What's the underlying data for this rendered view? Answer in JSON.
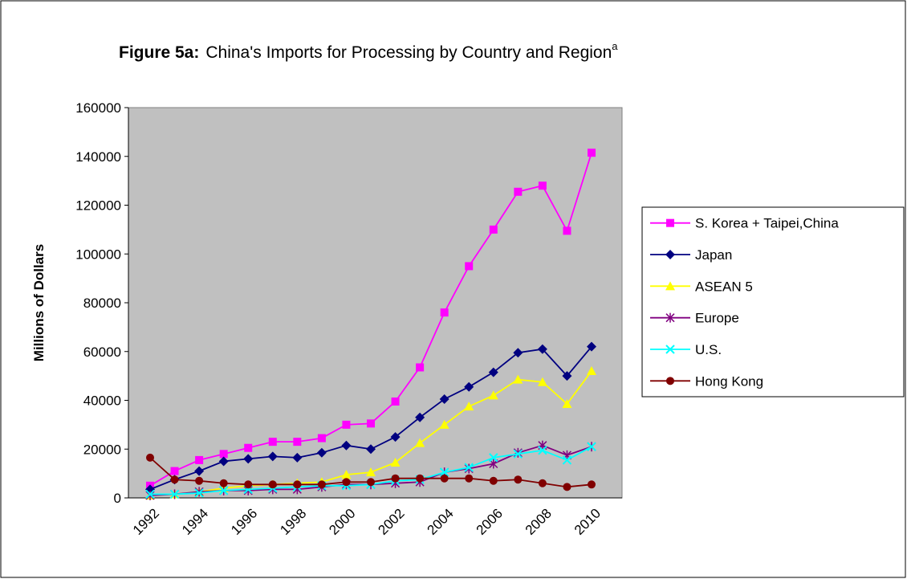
{
  "chart_data": {
    "type": "line",
    "figure_label": "Figure 5a:",
    "title": "China's Imports for Processing by Country and Region",
    "title_superscript": "a",
    "ylabel": "Millions of Dollars",
    "categories": [
      "1992",
      null,
      "1994",
      null,
      "1996",
      null,
      "1998",
      null,
      "2000",
      null,
      "2002",
      null,
      "2004",
      null,
      "2006",
      null,
      "2008",
      null,
      "2010"
    ],
    "ylim": [
      0,
      160000
    ],
    "yticks": [
      0,
      20000,
      40000,
      60000,
      80000,
      100000,
      120000,
      140000,
      160000
    ],
    "legend": "right",
    "series": [
      {
        "name": "S. Korea + Taipei,China",
        "color": "#ff00ff",
        "marker": "square",
        "values": [
          5000,
          11000,
          15500,
          18000,
          20500,
          23000,
          23000,
          24500,
          30000,
          30500,
          39500,
          53500,
          76000,
          95000,
          110000,
          125500,
          128000,
          109500,
          141500
        ]
      },
      {
        "name": "Japan",
        "color": "#000080",
        "marker": "diamond",
        "values": [
          3500,
          7500,
          11000,
          15000,
          16000,
          17000,
          16500,
          18500,
          21500,
          20000,
          25000,
          33000,
          40500,
          45500,
          51500,
          59500,
          61000,
          50000,
          62000
        ]
      },
      {
        "name": "ASEAN 5",
        "color": "#ffff00",
        "marker": "triangle",
        "values": [
          1000,
          1500,
          2500,
          4000,
          5000,
          5500,
          6000,
          6500,
          9500,
          10500,
          14500,
          22500,
          30000,
          37500,
          42000,
          48500,
          47500,
          38500,
          52000
        ]
      },
      {
        "name": "Europe",
        "color": "#800080",
        "marker": "asterisk",
        "values": [
          1000,
          1500,
          2500,
          3000,
          3000,
          3500,
          3500,
          4500,
          5500,
          5500,
          6000,
          6500,
          10500,
          12000,
          14000,
          18500,
          21500,
          17500,
          21000
        ]
      },
      {
        "name": "U.S.",
        "color": "#00ffff",
        "marker": "x",
        "values": [
          1500,
          1500,
          2000,
          3000,
          3500,
          4000,
          4500,
          5000,
          5000,
          5500,
          7000,
          7500,
          10500,
          12500,
          16500,
          18000,
          19500,
          15500,
          21000
        ]
      },
      {
        "name": "Hong Kong",
        "color": "#800000",
        "marker": "circle",
        "values": [
          16500,
          7500,
          7000,
          6000,
          5500,
          5500,
          5500,
          5500,
          6500,
          6500,
          8000,
          8000,
          8000,
          8000,
          7000,
          7500,
          6000,
          4500,
          5500
        ]
      }
    ]
  }
}
